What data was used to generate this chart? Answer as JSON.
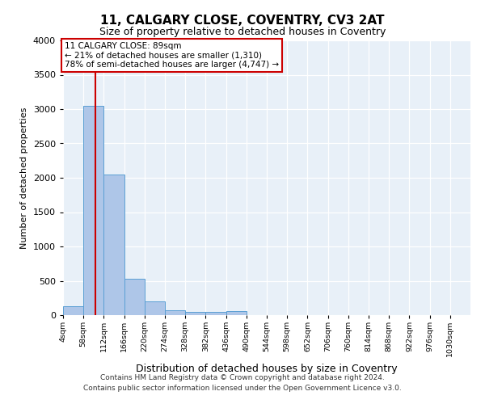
{
  "title": "11, CALGARY CLOSE, COVENTRY, CV3 2AT",
  "subtitle": "Size of property relative to detached houses in Coventry",
  "xlabel": "Distribution of detached houses by size in Coventry",
  "ylabel": "Number of detached properties",
  "footer_line1": "Contains HM Land Registry data © Crown copyright and database right 2024.",
  "footer_line2": "Contains public sector information licensed under the Open Government Licence v3.0.",
  "annotation_title": "11 CALGARY CLOSE: 89sqm",
  "annotation_line1": "← 21% of detached houses are smaller (1,310)",
  "annotation_line2": "78% of semi-detached houses are larger (4,747) →",
  "property_size": 89,
  "bin_edges": [
    4,
    58,
    112,
    166,
    220,
    274,
    328,
    382,
    436,
    490,
    544,
    598,
    652,
    706,
    760,
    814,
    868,
    922,
    976,
    1030,
    1084
  ],
  "bar_heights": [
    130,
    3050,
    2050,
    525,
    200,
    75,
    50,
    45,
    55,
    0,
    0,
    0,
    0,
    0,
    0,
    0,
    0,
    0,
    0,
    0
  ],
  "bar_color": "#aec6e8",
  "bar_edge_color": "#5a9fd4",
  "red_line_color": "#cc0000",
  "box_edge_color": "#cc0000",
  "background_color": "#e8f0f8",
  "ylim": [
    0,
    4000
  ],
  "yticks": [
    0,
    500,
    1000,
    1500,
    2000,
    2500,
    3000,
    3500,
    4000
  ]
}
